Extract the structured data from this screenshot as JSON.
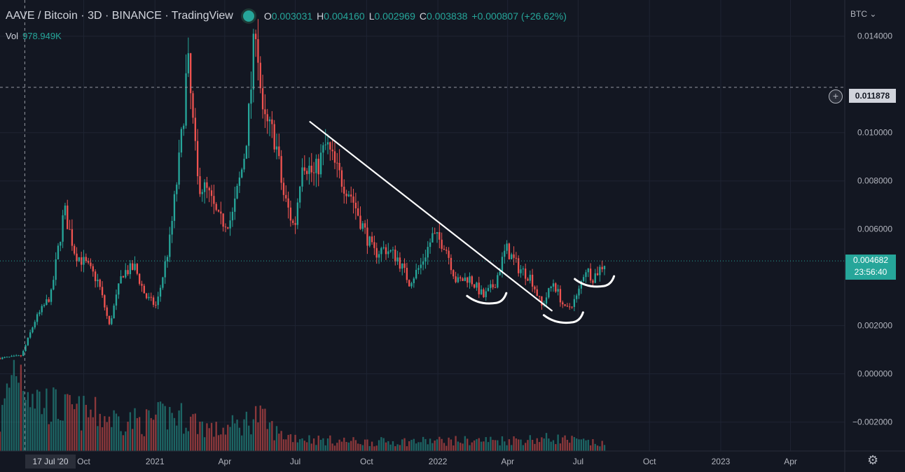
{
  "header": {
    "symbol": "AAVE / Bitcoin · 3D · BINANCE · TradingView",
    "ohlc": {
      "o_label": "O",
      "o": "0.003031",
      "h_label": "H",
      "h": "0.004160",
      "l_label": "L",
      "l": "0.002969",
      "c_label": "C",
      "c": "0.003838",
      "change": "+0.000807 (+26.62%)"
    },
    "vol_label": "Vol",
    "vol_value": "978.949K"
  },
  "axis": {
    "currency": "BTC",
    "currency_icon": "chevron-down-icon"
  },
  "crosshair": {
    "price": "0.011878",
    "date": "17 Jul '20"
  },
  "last_price": {
    "price": "0.004682",
    "countdown": "23:56:40"
  },
  "colors": {
    "up": "#26a69a",
    "down": "#ef5350",
    "background": "#131722",
    "annotation": "#ffffff"
  },
  "chart_data": {
    "type": "candlestick",
    "symbol": "AAVE / Bitcoin",
    "interval": "3D",
    "y_axis": {
      "ticks": [
        "0.014000",
        "0.010000",
        "0.008000",
        "0.006000",
        "0.002000",
        "0.000000",
        "−0.002000"
      ],
      "tick_values": [
        0.014,
        0.01,
        0.008,
        0.006,
        0.002,
        0.0,
        -0.002
      ],
      "range": [
        -0.0032,
        0.0155
      ]
    },
    "x_axis": {
      "ticks": [
        "Oct",
        "2021",
        "Apr",
        "Jul",
        "Oct",
        "2022",
        "Apr",
        "Jul",
        "Oct",
        "2023",
        "Apr"
      ],
      "tick_dates": [
        "2020-10-01",
        "2021-01-01",
        "2021-04-01",
        "2021-07-01",
        "2021-10-01",
        "2022-01-01",
        "2022-04-01",
        "2022-07-01",
        "2022-10-01",
        "2023-01-01",
        "2023-04-01"
      ],
      "range": [
        "2020-06-15",
        "2023-06-10"
      ]
    },
    "price_anchors": [
      [
        "2020-06-15",
        0.00065
      ],
      [
        "2020-07-13",
        0.00075
      ],
      [
        "2020-07-30",
        0.0022
      ],
      [
        "2020-08-20",
        0.0033
      ],
      [
        "2020-09-06",
        0.0068
      ],
      [
        "2020-09-20",
        0.005
      ],
      [
        "2020-10-05",
        0.0045
      ],
      [
        "2020-10-20",
        0.0038
      ],
      [
        "2020-11-03",
        0.002
      ],
      [
        "2020-11-20",
        0.0042
      ],
      [
        "2020-12-06",
        0.0044
      ],
      [
        "2020-12-20",
        0.0032
      ],
      [
        "2021-01-03",
        0.0028
      ],
      [
        "2021-01-20",
        0.0055
      ],
      [
        "2021-02-03",
        0.0093
      ],
      [
        "2021-02-12",
        0.013
      ],
      [
        "2021-02-25",
        0.008
      ],
      [
        "2021-03-10",
        0.0075
      ],
      [
        "2021-03-25",
        0.0063
      ],
      [
        "2021-04-10",
        0.0064
      ],
      [
        "2021-04-25",
        0.0088
      ],
      [
        "2021-05-03",
        0.011
      ],
      [
        "2021-05-11",
        0.0147
      ],
      [
        "2021-05-20",
        0.0105
      ],
      [
        "2021-06-05",
        0.0098
      ],
      [
        "2021-06-15",
        0.0075
      ],
      [
        "2021-06-30",
        0.006
      ],
      [
        "2021-07-10",
        0.009
      ],
      [
        "2021-07-25",
        0.0082
      ],
      [
        "2021-08-10",
        0.0095
      ],
      [
        "2021-08-25",
        0.0083
      ],
      [
        "2021-09-10",
        0.0075
      ],
      [
        "2021-09-25",
        0.0062
      ],
      [
        "2021-10-10",
        0.005
      ],
      [
        "2021-10-25",
        0.0052
      ],
      [
        "2021-11-10",
        0.0048
      ],
      [
        "2021-11-25",
        0.0038
      ],
      [
        "2021-12-10",
        0.0045
      ],
      [
        "2021-12-25",
        0.0057
      ],
      [
        "2022-01-10",
        0.0054
      ],
      [
        "2022-01-25",
        0.0038
      ],
      [
        "2022-02-10",
        0.004
      ],
      [
        "2022-03-01",
        0.0032
      ],
      [
        "2022-03-15",
        0.0037
      ],
      [
        "2022-03-30",
        0.0052
      ],
      [
        "2022-04-15",
        0.0044
      ],
      [
        "2022-05-01",
        0.004
      ],
      [
        "2022-05-15",
        0.0028
      ],
      [
        "2022-05-30",
        0.0038
      ],
      [
        "2022-06-15",
        0.0026
      ],
      [
        "2022-06-30",
        0.0032
      ],
      [
        "2022-07-10",
        0.0044
      ],
      [
        "2022-07-20",
        0.004
      ],
      [
        "2022-08-06",
        0.004682
      ]
    ],
    "volume_series": [
      [
        "2020-06-15",
        0.3
      ],
      [
        "2020-07-05",
        1.0
      ],
      [
        "2020-08-05",
        0.55
      ],
      [
        "2020-09-05",
        0.45
      ],
      [
        "2020-10-15",
        0.4
      ],
      [
        "2020-11-10",
        0.35
      ],
      [
        "2020-12-20",
        0.32
      ],
      [
        "2021-01-20",
        0.4
      ],
      [
        "2021-02-15",
        0.35
      ],
      [
        "2021-03-20",
        0.22
      ],
      [
        "2021-04-25",
        0.3
      ],
      [
        "2021-05-12",
        0.4
      ],
      [
        "2021-06-10",
        0.18
      ],
      [
        "2021-08-01",
        0.12
      ],
      [
        "2021-10-01",
        0.1
      ],
      [
        "2022-01-01",
        0.11
      ],
      [
        "2022-04-01",
        0.12
      ],
      [
        "2022-06-01",
        0.14
      ],
      [
        "2022-08-06",
        0.07
      ]
    ],
    "grid": true,
    "annotations": [
      {
        "type": "trendline",
        "from": [
          "2021-07-20",
          0.01045
        ],
        "to": [
          "2022-05-28",
          0.00262
        ]
      },
      {
        "type": "arc",
        "center": [
          "2022-03-05",
          0.003
        ]
      },
      {
        "type": "arc",
        "center": [
          "2022-06-12",
          0.0022
        ]
      },
      {
        "type": "arc",
        "center": [
          "2022-07-22",
          0.0037
        ]
      }
    ]
  }
}
